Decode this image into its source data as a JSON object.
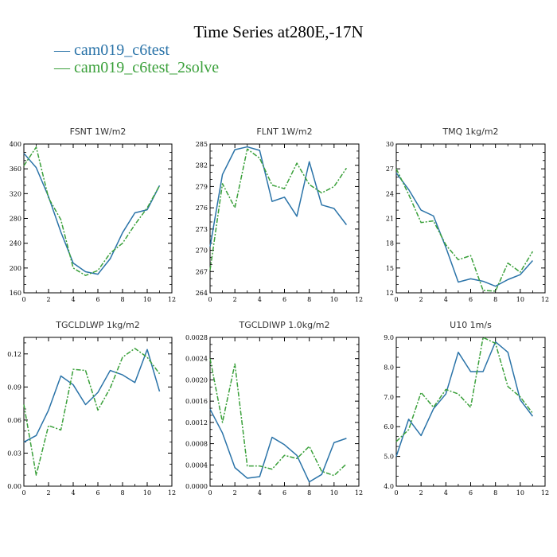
{
  "title": "Time Series at280E,-17N",
  "legend": [
    {
      "label": "cam019_c6test",
      "color": "#2a73a8"
    },
    {
      "label": "cam019_c6test_2solve",
      "color": "#3aa03a"
    }
  ],
  "chart_data": [
    {
      "type": "line",
      "title": "FSNT   1W/m2",
      "x": [
        0,
        1,
        2,
        3,
        4,
        5,
        6,
        7,
        8,
        9,
        10,
        11
      ],
      "xlim": [
        0,
        12
      ],
      "xticks": [
        "0",
        "2",
        "4",
        "6",
        "8",
        "10",
        "12"
      ],
      "ylim": [
        160,
        400
      ],
      "yticks": [
        "160",
        "200",
        "240",
        "280",
        "320",
        "360",
        "400"
      ],
      "series": [
        {
          "values": [
            385,
            362,
            315,
            258,
            208,
            194,
            190,
            215,
            257,
            289,
            294,
            333
          ]
        },
        {
          "values": [
            365,
            395,
            313,
            278,
            200,
            188,
            196,
            224,
            240,
            270,
            297,
            333
          ]
        }
      ]
    },
    {
      "type": "line",
      "title": "FLNT   1W/m2",
      "x": [
        0,
        1,
        2,
        3,
        4,
        5,
        6,
        7,
        8,
        9,
        10,
        11
      ],
      "xlim": [
        0,
        12
      ],
      "xticks": [
        "0",
        "2",
        "4",
        "6",
        "8",
        "10",
        "12"
      ],
      "ylim": [
        264,
        285
      ],
      "yticks": [
        "264",
        "267",
        "270",
        "273",
        "276",
        "279",
        "282",
        "285"
      ],
      "series": [
        {
          "values": [
            270.5,
            280.7,
            284.2,
            284.6,
            284.1,
            276.9,
            277.5,
            274.8,
            282.5,
            276.4,
            275.9,
            273.6
          ]
        },
        {
          "values": [
            267.2,
            279.4,
            276.0,
            284.3,
            283.0,
            279.2,
            278.7,
            282.3,
            279.3,
            278.1,
            279.0,
            281.6
          ]
        }
      ]
    },
    {
      "type": "line",
      "title": "TMQ   1kg/m2",
      "x": [
        0,
        1,
        2,
        3,
        4,
        5,
        6,
        7,
        8,
        9,
        10,
        11
      ],
      "xlim": [
        0,
        12
      ],
      "xticks": [
        "0",
        "2",
        "4",
        "6",
        "8",
        "10",
        "12"
      ],
      "ylim": [
        12,
        30
      ],
      "yticks": [
        "12",
        "15",
        "18",
        "21",
        "24",
        "27",
        "30"
      ],
      "series": [
        {
          "values": [
            26.5,
            24.5,
            22.0,
            21.3,
            17.5,
            13.3,
            13.7,
            13.4,
            12.8,
            13.6,
            14.2,
            15.9
          ]
        },
        {
          "values": [
            27.0,
            23.9,
            20.5,
            20.7,
            17.8,
            16.0,
            16.5,
            12.3,
            12.2,
            15.6,
            14.5,
            17.0
          ]
        }
      ]
    },
    {
      "type": "line",
      "title": "TGCLDLWP   1kg/m2",
      "x": [
        0,
        1,
        2,
        3,
        4,
        5,
        6,
        7,
        8,
        9,
        10,
        11
      ],
      "xlim": [
        0,
        12
      ],
      "xticks": [
        "0",
        "2",
        "4",
        "6",
        "8",
        "10",
        "12"
      ],
      "ylim": [
        0,
        0.135
      ],
      "yticks": [
        "0.00",
        "0.03",
        "0.06",
        "0.09",
        "0.12"
      ],
      "series": [
        {
          "values": [
            0.04,
            0.046,
            0.069,
            0.1,
            0.092,
            0.074,
            0.085,
            0.105,
            0.101,
            0.094,
            0.124,
            0.086
          ]
        },
        {
          "values": [
            0.074,
            0.01,
            0.055,
            0.051,
            0.106,
            0.105,
            0.069,
            0.089,
            0.117,
            0.125,
            0.117,
            0.102
          ]
        }
      ]
    },
    {
      "type": "line",
      "title": "TGCLDIWP   1.0kg/m2",
      "x": [
        0,
        1,
        2,
        3,
        4,
        5,
        6,
        7,
        8,
        9,
        10,
        11
      ],
      "xlim": [
        0,
        12
      ],
      "xticks": [
        "0",
        "2",
        "4",
        "6",
        "8",
        "10",
        "12"
      ],
      "ylim": [
        0,
        0.0028
      ],
      "yticks": [
        "0.0000",
        "0.0004",
        "0.0008",
        "0.0012",
        "0.0016",
        "0.0020",
        "0.0024",
        "0.0028"
      ],
      "series": [
        {
          "values": [
            0.00145,
            0.001,
            0.00035,
            0.00015,
            0.00018,
            0.00092,
            0.00078,
            0.00058,
            8e-05,
            0.00022,
            0.00082,
            0.0009
          ]
        },
        {
          "values": [
            0.0024,
            0.0012,
            0.0023,
            0.00038,
            0.00038,
            0.00032,
            0.00058,
            0.00052,
            0.00075,
            0.00028,
            0.0002,
            0.00042
          ]
        }
      ]
    },
    {
      "type": "line",
      "title": "U10   1m/s",
      "x": [
        0,
        1,
        2,
        3,
        4,
        5,
        6,
        7,
        8,
        9,
        10,
        11
      ],
      "xlim": [
        0,
        12
      ],
      "xticks": [
        "0",
        "2",
        "4",
        "6",
        "8",
        "10",
        "12"
      ],
      "ylim": [
        4.0,
        9.0
      ],
      "yticks": [
        "4.0",
        "5.0",
        "6.0",
        "7.0",
        "8.0",
        "9.0"
      ],
      "series": [
        {
          "values": [
            5.0,
            6.25,
            5.7,
            6.6,
            7.1,
            8.5,
            7.85,
            7.85,
            8.85,
            8.5,
            6.9,
            6.35
          ]
        },
        {
          "values": [
            5.5,
            5.9,
            7.15,
            6.65,
            7.25,
            7.1,
            6.65,
            9.0,
            8.8,
            7.35,
            7.0,
            6.45
          ]
        }
      ]
    }
  ]
}
